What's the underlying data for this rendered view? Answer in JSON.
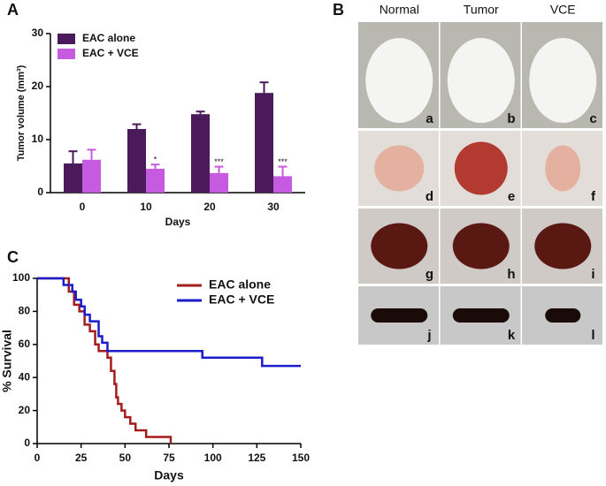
{
  "panel_labels": [
    "A",
    "B",
    "C"
  ],
  "chart_data": [
    {
      "type": "bar",
      "ylabel": "Tumor volume (mm³)",
      "xlabel": "Days",
      "categories": [
        "0",
        "10",
        "20",
        "30"
      ],
      "series": [
        {
          "name": "EAC alone",
          "color": "#4b1a5a",
          "values": [
            5.5,
            12,
            14.8,
            18.8
          ],
          "errors": [
            2.3,
            0.9,
            0.5,
            2
          ]
        },
        {
          "name": "EAC + VCE",
          "color": "#c65ae0",
          "values": [
            6.2,
            4.5,
            3.7,
            3.1
          ],
          "errors": [
            1.9,
            0.8,
            1.2,
            1.8
          ],
          "annotations": [
            null,
            "*",
            "***",
            "***"
          ]
        }
      ],
      "ylim": [
        0,
        30
      ],
      "yticks": [
        0,
        10,
        20,
        30
      ],
      "legend": "upper-left"
    },
    {
      "type": "line",
      "ylabel": "% Survival",
      "xlabel": "Days",
      "series": [
        {
          "name": "EAC alone",
          "color": "#a41c1c",
          "x": [
            0,
            18,
            18,
            21,
            21,
            24,
            24,
            27,
            27,
            30,
            30,
            33,
            33,
            35,
            35,
            40,
            40,
            42,
            42,
            44,
            44,
            45,
            45,
            46,
            46,
            48,
            48,
            50,
            50,
            53,
            53,
            56,
            56,
            62,
            62,
            76,
            76
          ],
          "values": [
            100,
            100,
            92,
            92,
            84,
            84,
            80,
            80,
            72,
            72,
            68,
            68,
            60,
            60,
            56,
            56,
            52,
            52,
            44,
            44,
            36,
            36,
            28,
            28,
            24,
            24,
            20,
            20,
            16,
            16,
            12,
            12,
            8,
            8,
            4,
            4,
            0
          ]
        },
        {
          "name": "EAC + VCE",
          "color": "#1c1ccc",
          "x": [
            0,
            15,
            15,
            20,
            20,
            22,
            22,
            25,
            25,
            27,
            27,
            30,
            30,
            35,
            35,
            37,
            37,
            40,
            40,
            94,
            94,
            128,
            128,
            150
          ],
          "values": [
            100,
            100,
            96,
            96,
            92,
            92,
            87,
            87,
            83,
            83,
            78,
            78,
            74,
            74,
            65,
            65,
            61,
            61,
            56,
            56,
            52,
            52,
            47,
            47
          ]
        }
      ],
      "xlim": [
        0,
        150
      ],
      "xticks": [
        0,
        25,
        50,
        75,
        100,
        125,
        150
      ],
      "ylim": [
        0,
        100
      ],
      "yticks": [
        0,
        20,
        40,
        60,
        80,
        100
      ],
      "legend": "upper-right"
    }
  ],
  "photos": {
    "columns": [
      "Normal",
      "Tumor",
      "VCE"
    ],
    "labels": [
      "a",
      "b",
      "c",
      "d",
      "e",
      "f",
      "g",
      "h",
      "i",
      "j",
      "k",
      "l"
    ]
  }
}
